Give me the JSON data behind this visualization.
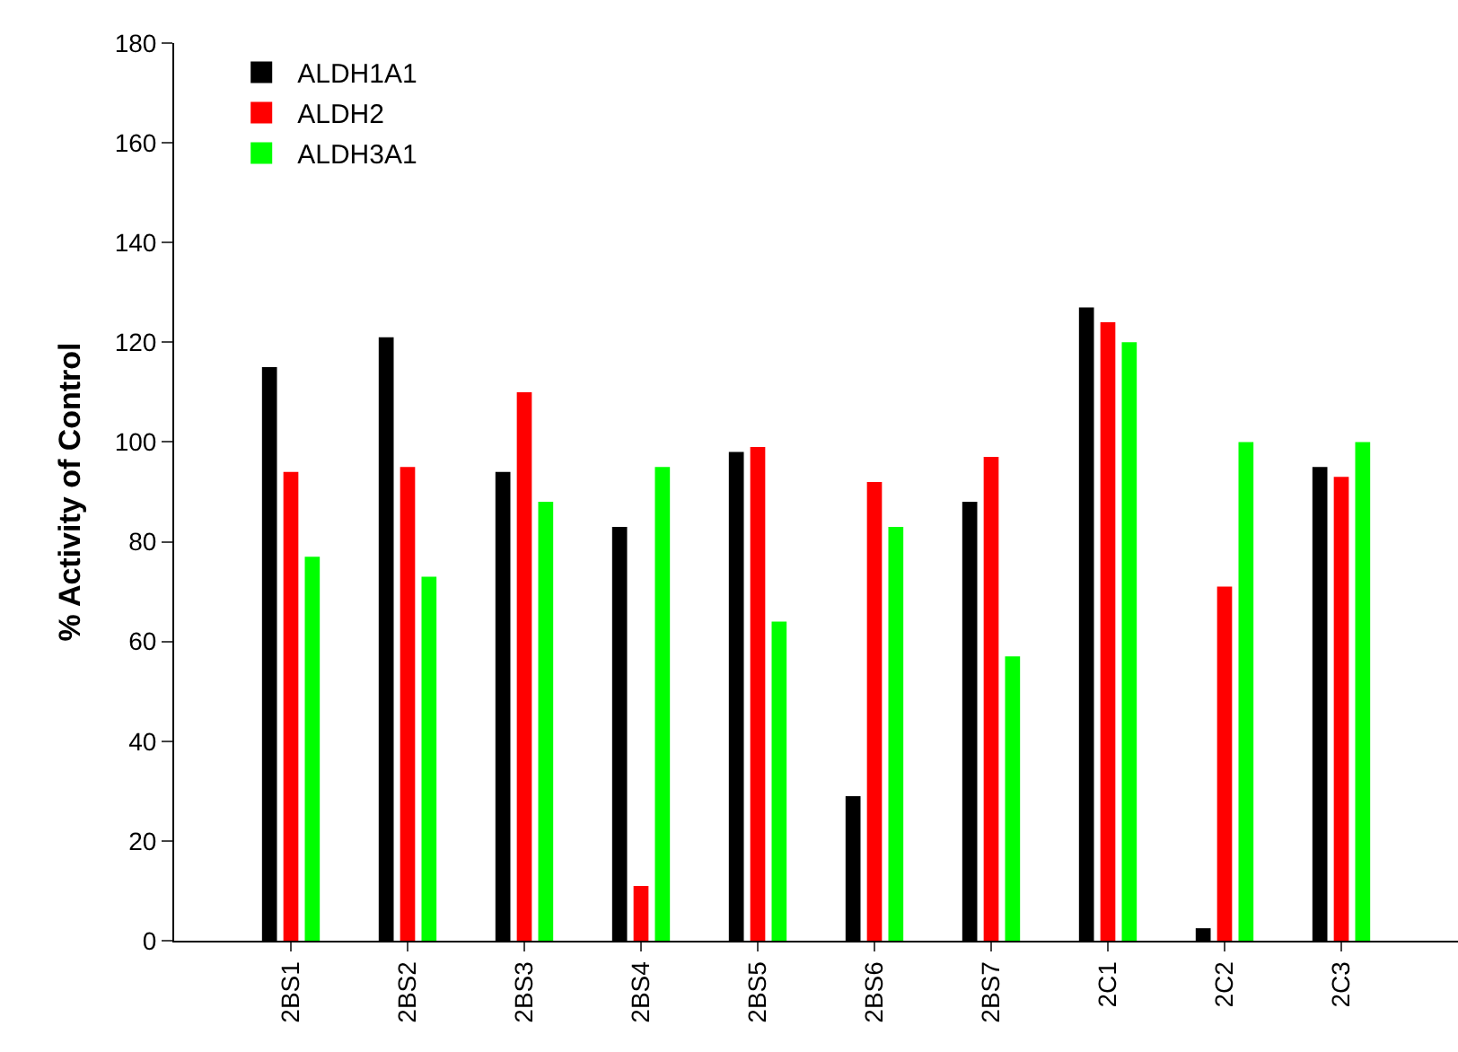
{
  "chart_data": {
    "type": "bar",
    "ylabel": "% Activity of Control",
    "categories": [
      "2BS1",
      "2BS2",
      "2BS3",
      "2BS4",
      "2BS5",
      "2BS6",
      "2BS7",
      "2C1",
      "2C2",
      "2C3"
    ],
    "series": [
      {
        "name": "ALDH1A1",
        "color": "#000000",
        "values": [
          115,
          121,
          94,
          83,
          98,
          29,
          88,
          127,
          2.5,
          95
        ]
      },
      {
        "name": "ALDH2",
        "color": "#ff0000",
        "values": [
          94,
          95,
          110,
          11,
          99,
          92,
          97,
          124,
          71,
          93
        ]
      },
      {
        "name": "ALDH3A1",
        "color": "#00ff00",
        "values": [
          77,
          73,
          88,
          95,
          64,
          83,
          57,
          120,
          100,
          100
        ]
      }
    ],
    "ylim": [
      0,
      180
    ],
    "yticks": [
      0,
      20,
      40,
      60,
      80,
      100,
      120,
      140,
      160,
      180
    ],
    "grid": false,
    "legend": "top left"
  }
}
